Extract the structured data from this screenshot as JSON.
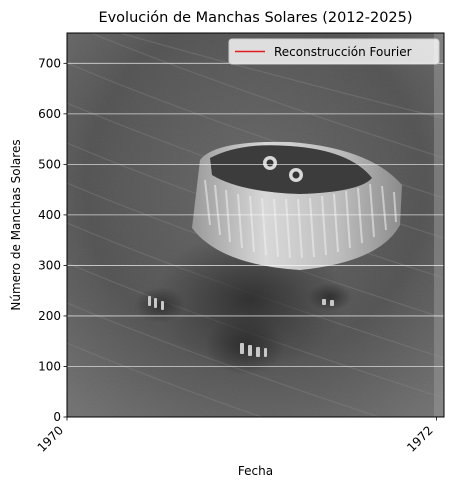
{
  "chart_data": {
    "type": "line",
    "title": "Evolución de Manchas Solares (2012-2025)",
    "xlabel": "Fecha",
    "ylabel": "Número de Manchas Solares",
    "xlim": [
      1970,
      1972.04
    ],
    "ylim": [
      760,
      0
    ],
    "x_ticks": [
      "1970",
      "1972"
    ],
    "y_ticks": [
      0,
      100,
      200,
      300,
      400,
      500,
      600,
      700
    ],
    "grid": "horizontal",
    "legend_position": "top-right",
    "series": [
      {
        "name": "Reconstrucción Fourier",
        "color": "#e41a1c",
        "x": [],
        "y": []
      }
    ],
    "background_image": "grayscale-solar-sunspot-image"
  }
}
